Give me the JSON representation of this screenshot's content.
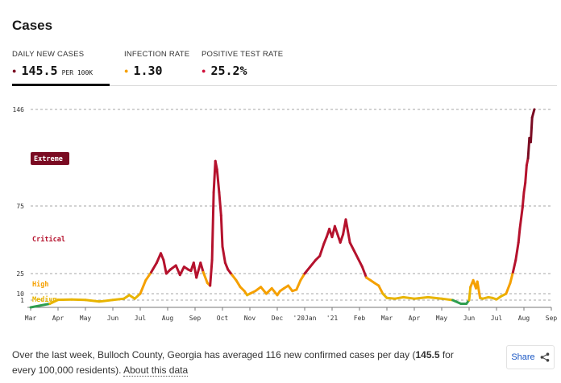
{
  "title": "Cases",
  "tabs": [
    {
      "label": "DAILY NEW CASES",
      "value": "145.5",
      "unit": "PER 100K",
      "color": "#7a0b22",
      "active": true
    },
    {
      "label": "INFECTION RATE",
      "value": "1.30",
      "unit": "",
      "color": "#f5a000",
      "active": false
    },
    {
      "label": "POSITIVE TEST RATE",
      "value": "25.2%",
      "unit": "",
      "color": "#d0103a",
      "active": false
    }
  ],
  "chart_data": {
    "type": "line",
    "title": "",
    "xlabel": "",
    "ylabel": "",
    "y_ticks": [
      1,
      10,
      25,
      75,
      146
    ],
    "x_ticks": [
      "Mar",
      "Apr",
      "May",
      "Jun",
      "Jul",
      "Aug",
      "Sep",
      "Oct",
      "Nov",
      "Dec",
      "'20Jan",
      "'21",
      "Feb",
      "Mar",
      "Apr",
      "May",
      "Jun",
      "Jul",
      "Aug",
      "Sep"
    ],
    "x_range": [
      "2020-03",
      "2021-09"
    ],
    "risk_levels": [
      {
        "name": "Extreme",
        "color": "#7a0b22",
        "boxed": true
      },
      {
        "name": "Critical",
        "color": "#b5122d",
        "boxed": false
      },
      {
        "name": "High",
        "color": "#f5a000",
        "boxed": false
      },
      {
        "name": "Medium",
        "color": "#e8b400",
        "boxed": false
      }
    ],
    "series": [
      {
        "values": [
          [
            0,
            0
          ],
          [
            0.7,
            0.5
          ],
          [
            1.0,
            1.5
          ],
          [
            1.5,
            1.8
          ],
          [
            2.0,
            1.2
          ],
          [
            2.5,
            0.8
          ],
          [
            3.0,
            1.2
          ],
          [
            3.4,
            3
          ],
          [
            3.6,
            8
          ],
          [
            3.8,
            3
          ],
          [
            4.0,
            10
          ],
          [
            4.2,
            20
          ],
          [
            4.4,
            26
          ],
          [
            4.6,
            33
          ],
          [
            4.75,
            40
          ],
          [
            4.85,
            35
          ],
          [
            4.95,
            25
          ],
          [
            5.1,
            28
          ],
          [
            5.3,
            31
          ],
          [
            5.45,
            24
          ],
          [
            5.6,
            30
          ],
          [
            5.75,
            28
          ],
          [
            5.85,
            27
          ],
          [
            5.95,
            33
          ],
          [
            6.05,
            22
          ],
          [
            6.2,
            33
          ],
          [
            6.3,
            26
          ],
          [
            6.45,
            18
          ],
          [
            6.55,
            16
          ],
          [
            6.62,
            35
          ],
          [
            6.68,
            85
          ],
          [
            6.74,
            108
          ],
          [
            6.8,
            102
          ],
          [
            6.88,
            85
          ],
          [
            6.95,
            68
          ],
          [
            7.0,
            45
          ],
          [
            7.1,
            33
          ],
          [
            7.2,
            28
          ],
          [
            7.35,
            24
          ],
          [
            7.5,
            20
          ],
          [
            7.65,
            15
          ],
          [
            7.8,
            12
          ],
          [
            7.9,
            8
          ],
          [
            8.0,
            10
          ],
          [
            8.2,
            12
          ],
          [
            8.4,
            15
          ],
          [
            8.6,
            10
          ],
          [
            8.8,
            14
          ],
          [
            9.0,
            8
          ],
          [
            9.1,
            12
          ],
          [
            9.25,
            14
          ],
          [
            9.4,
            16
          ],
          [
            9.55,
            12
          ],
          [
            9.7,
            13
          ],
          [
            9.85,
            20
          ],
          [
            10.0,
            25
          ],
          [
            10.2,
            30
          ],
          [
            10.4,
            35
          ],
          [
            10.55,
            38
          ],
          [
            10.7,
            47
          ],
          [
            10.8,
            52
          ],
          [
            10.9,
            58
          ],
          [
            11.0,
            52
          ],
          [
            11.1,
            60
          ],
          [
            11.2,
            54
          ],
          [
            11.3,
            48
          ],
          [
            11.4,
            54
          ],
          [
            11.5,
            65
          ],
          [
            11.65,
            48
          ],
          [
            11.8,
            42
          ],
          [
            11.95,
            36
          ],
          [
            12.1,
            30
          ],
          [
            12.25,
            22
          ],
          [
            12.4,
            20
          ],
          [
            12.55,
            18
          ],
          [
            12.7,
            16
          ],
          [
            12.85,
            10
          ],
          [
            13.0,
            4
          ],
          [
            13.3,
            3
          ],
          [
            13.6,
            5
          ],
          [
            14.0,
            3
          ],
          [
            14.5,
            5
          ],
          [
            15.0,
            3
          ],
          [
            15.4,
            1
          ],
          [
            15.7,
            0.5
          ],
          [
            15.9,
            0.5
          ],
          [
            16.0,
            1
          ],
          [
            16.05,
            15
          ],
          [
            16.15,
            20
          ],
          [
            16.25,
            14
          ],
          [
            16.3,
            19
          ],
          [
            16.4,
            4
          ],
          [
            16.5,
            3
          ],
          [
            16.7,
            5
          ],
          [
            16.85,
            4
          ],
          [
            17.0,
            2
          ],
          [
            17.15,
            6
          ],
          [
            17.35,
            10
          ],
          [
            17.5,
            18
          ],
          [
            17.6,
            26
          ],
          [
            17.7,
            35
          ],
          [
            17.8,
            48
          ],
          [
            17.85,
            58
          ],
          [
            17.95,
            74
          ],
          [
            18.0,
            85
          ],
          [
            18.05,
            92
          ],
          [
            18.1,
            105
          ],
          [
            18.15,
            110
          ],
          [
            18.2,
            125
          ],
          [
            18.25,
            122
          ],
          [
            18.3,
            140
          ],
          [
            18.38,
            146
          ]
        ]
      }
    ]
  },
  "footer": {
    "text_before": "Over the last week, Bulloch County, Georgia has averaged 116 new confirmed cases per day (",
    "bold": "145.5",
    "text_after": " for every 100,000 residents).",
    "link": "About this data"
  },
  "share": {
    "label": "Share",
    "icon": "share-icon"
  }
}
